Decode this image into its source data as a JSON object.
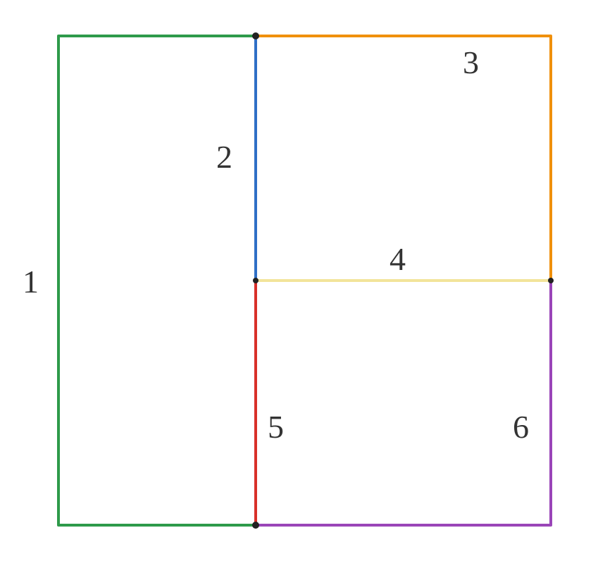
{
  "paths": [
    {
      "id": "1",
      "label": "1",
      "color": "#2e9a4a"
    },
    {
      "id": "2",
      "label": "2",
      "color": "#2f6fc6"
    },
    {
      "id": "3",
      "label": "3",
      "color": "#f0900c"
    },
    {
      "id": "4",
      "label": "4",
      "color": "#f2e49a"
    },
    {
      "id": "5",
      "label": "5",
      "color": "#d8302a"
    },
    {
      "id": "6",
      "label": "6",
      "color": "#9a45b8"
    }
  ],
  "nodes": [
    "top-mid",
    "center-left",
    "center-right",
    "bottom-mid"
  ]
}
